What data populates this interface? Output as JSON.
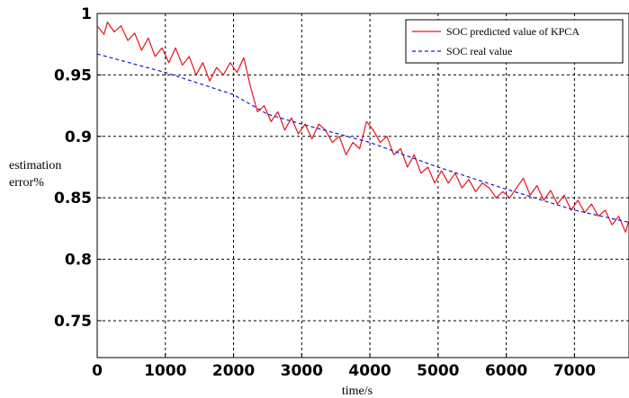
{
  "chart_data": {
    "type": "line",
    "xlabel": "time/s",
    "ylabel": [
      "estimation",
      "error%"
    ],
    "xlim": [
      0,
      7800
    ],
    "ylim": [
      0.72,
      1.0
    ],
    "x_ticks": [
      0,
      1000,
      2000,
      3000,
      4000,
      5000,
      6000,
      7000
    ],
    "y_ticks": [
      0.75,
      0.8,
      0.85,
      0.9,
      0.95,
      1.0
    ],
    "x_tick_labels": [
      "0",
      "1000",
      "2000",
      "3000",
      "4000",
      "5000",
      "6000",
      "7000"
    ],
    "y_tick_labels": [
      "0.75",
      "0.8",
      "0.85",
      "0.9",
      "0.95",
      "1"
    ],
    "grid": true,
    "legend_position": "top-right",
    "series": [
      {
        "name": "SOC predicted value of KPCA",
        "color": "#e8141c",
        "style": "solid",
        "x": [
          0,
          100,
          150,
          250,
          350,
          450,
          550,
          650,
          750,
          850,
          950,
          1050,
          1150,
          1250,
          1350,
          1450,
          1550,
          1650,
          1750,
          1850,
          1950,
          2050,
          2150,
          2250,
          2350,
          2450,
          2550,
          2650,
          2750,
          2850,
          2950,
          3050,
          3150,
          3250,
          3350,
          3450,
          3550,
          3650,
          3750,
          3850,
          3950,
          4050,
          4150,
          4250,
          4350,
          4450,
          4550,
          4650,
          4750,
          4850,
          4950,
          5050,
          5150,
          5250,
          5350,
          5450,
          5550,
          5650,
          5750,
          5850,
          5950,
          6050,
          6150,
          6250,
          6350,
          6450,
          6550,
          6650,
          6750,
          6850,
          6950,
          7050,
          7150,
          7250,
          7350,
          7450,
          7550,
          7650,
          7750,
          7800
        ],
        "y": [
          0.99,
          0.983,
          0.993,
          0.985,
          0.99,
          0.978,
          0.984,
          0.97,
          0.98,
          0.965,
          0.972,
          0.96,
          0.972,
          0.958,
          0.965,
          0.95,
          0.96,
          0.945,
          0.956,
          0.95,
          0.96,
          0.952,
          0.964,
          0.94,
          0.92,
          0.925,
          0.912,
          0.92,
          0.905,
          0.915,
          0.902,
          0.91,
          0.898,
          0.91,
          0.905,
          0.895,
          0.9,
          0.885,
          0.895,
          0.89,
          0.912,
          0.905,
          0.895,
          0.9,
          0.885,
          0.89,
          0.875,
          0.885,
          0.87,
          0.875,
          0.862,
          0.872,
          0.862,
          0.87,
          0.858,
          0.865,
          0.855,
          0.862,
          0.858,
          0.85,
          0.855,
          0.85,
          0.858,
          0.866,
          0.852,
          0.86,
          0.848,
          0.856,
          0.845,
          0.852,
          0.84,
          0.848,
          0.838,
          0.845,
          0.835,
          0.84,
          0.828,
          0.835,
          0.822,
          0.832
        ]
      },
      {
        "name": "SOC real value",
        "color": "#1a1ac8",
        "style": "dashed",
        "x": [
          0,
          1000,
          2000,
          2500,
          3000,
          4000,
          5000,
          6000,
          7000,
          7800
        ],
        "y": [
          0.967,
          0.952,
          0.934,
          0.918,
          0.91,
          0.895,
          0.875,
          0.857,
          0.84,
          0.83
        ]
      }
    ]
  }
}
